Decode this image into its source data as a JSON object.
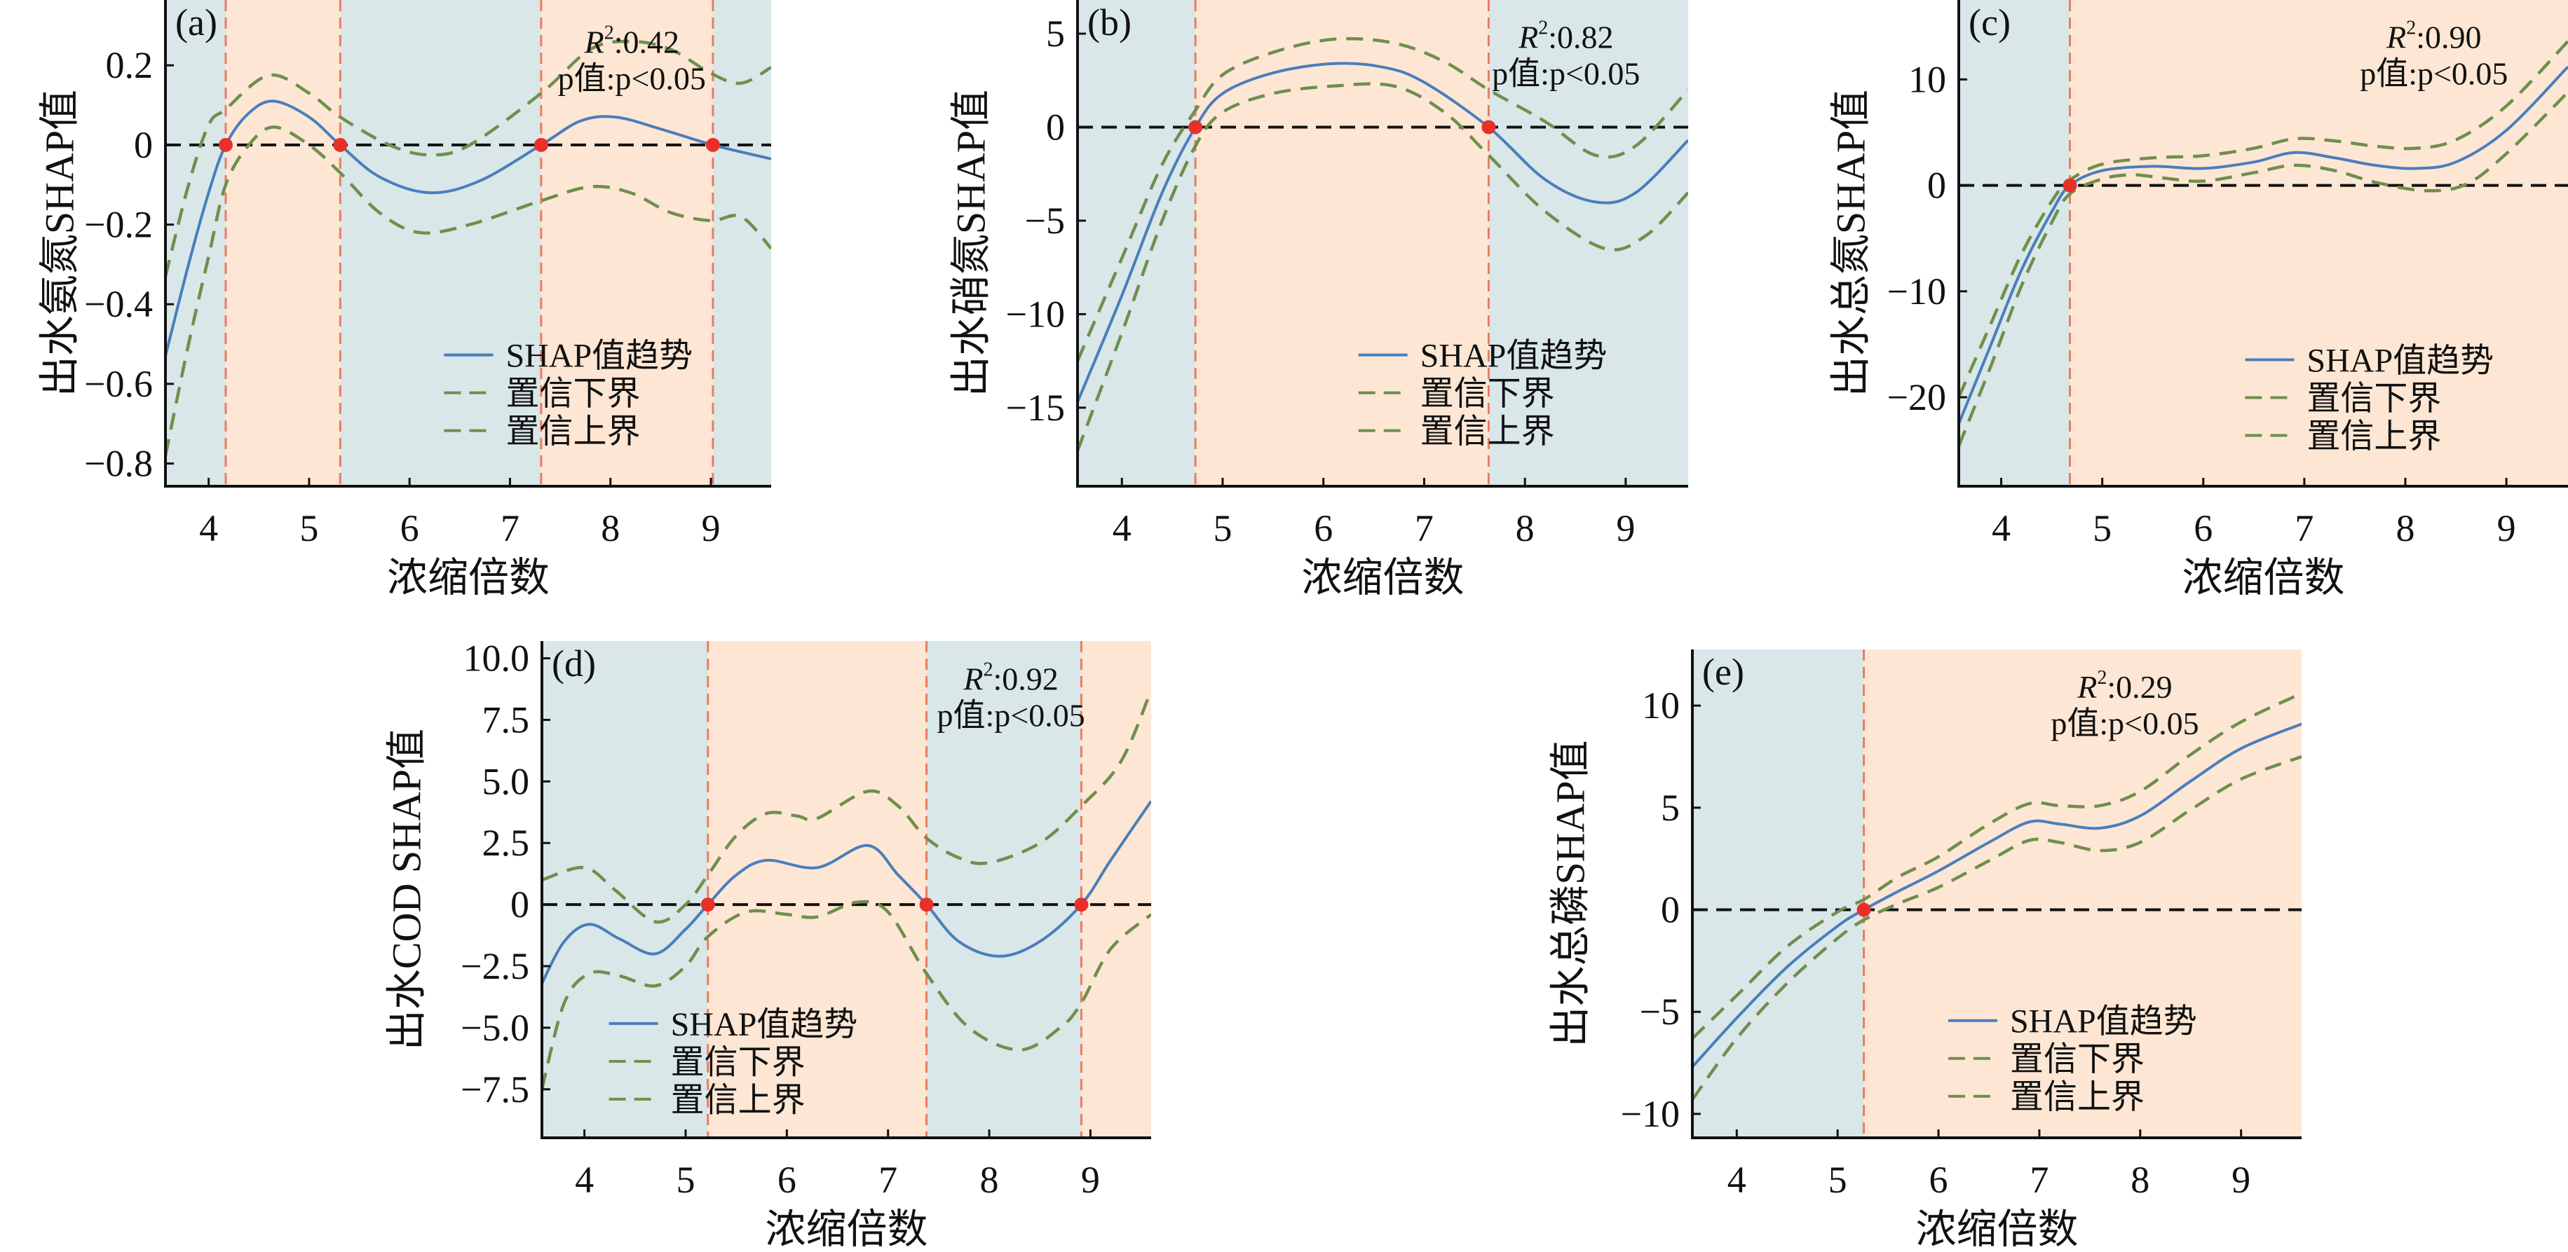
{
  "colors": {
    "region_low": "#d9e7e9",
    "region_high": "#fde7d4",
    "trend": "#4a7ebc",
    "confidence": "#6f8f4c",
    "threshold_line": "#ee7a5e",
    "threshold_dot": "#e8302a",
    "zero_line": "#111111"
  },
  "chart_data": [
    {
      "type": "line",
      "panel_label": "(a)",
      "xlabel": "浓缩倍数",
      "ylabel": "出水氨氮SHAP值",
      "r_symbol": "R",
      "r_sup": "2",
      "r2_value": ":0.42",
      "p_label": "p值:p<0.05",
      "legend": [
        "SHAP值趋势",
        "置信下界",
        "置信上界"
      ],
      "legend_placement": "lower-right",
      "xlim": [
        3.57,
        9.6
      ],
      "ylim": [
        -0.857,
        0.364
      ],
      "xticks": [
        4,
        5,
        6,
        7,
        8,
        9
      ],
      "xtick_labels": [
        "4",
        "5",
        "6",
        "7",
        "8",
        "9"
      ],
      "yticks": [
        0.2,
        0,
        -0.2,
        -0.4,
        -0.6,
        -0.8
      ],
      "ytick_labels": [
        "0.2",
        "0",
        "−0.2",
        "−0.4",
        "−0.6",
        "−0.8"
      ],
      "thresholds": [
        4.17,
        5.31,
        7.31,
        9.02
      ],
      "series": [
        {
          "name": "SHAP值趋势",
          "style": "solid",
          "x": [
            3.57,
            3.8,
            4.0,
            4.17,
            4.4,
            4.65,
            5.0,
            5.31,
            5.7,
            6.2,
            6.7,
            7.31,
            7.7,
            8.05,
            8.5,
            9.02,
            9.6
          ],
          "y": [
            -0.53,
            -0.3,
            -0.12,
            0,
            0.08,
            0.11,
            0.07,
            0,
            -0.08,
            -0.12,
            -0.09,
            0,
            0.06,
            0.07,
            0.04,
            0,
            -0.035
          ]
        },
        {
          "name": "置信下界",
          "style": "dashed",
          "x": [
            3.57,
            3.8,
            4.0,
            4.17,
            4.4,
            4.65,
            5.0,
            5.31,
            5.7,
            6.1,
            6.6,
            7.31,
            7.8,
            8.2,
            8.6,
            9.0,
            9.3,
            9.6
          ],
          "y": [
            -0.78,
            -0.5,
            -0.28,
            -0.1,
            0.0,
            0.045,
            0.0,
            -0.07,
            -0.17,
            -0.22,
            -0.2,
            -0.14,
            -0.105,
            -0.12,
            -0.17,
            -0.19,
            -0.18,
            -0.26
          ]
        },
        {
          "name": "置信上界",
          "style": "dashed",
          "x": [
            3.57,
            3.8,
            4.0,
            4.17,
            4.6,
            5.0,
            5.31,
            5.8,
            6.2,
            6.6,
            7.31,
            7.8,
            8.2,
            8.6,
            9.0,
            9.3,
            9.6
          ],
          "y": [
            -0.33,
            -0.1,
            0.05,
            0.09,
            0.175,
            0.13,
            0.07,
            0.0,
            -0.025,
            0.0,
            0.13,
            0.24,
            0.26,
            0.24,
            0.18,
            0.155,
            0.195
          ]
        }
      ]
    },
    {
      "type": "line",
      "panel_label": "(b)",
      "xlabel": "浓缩倍数",
      "ylabel": "出水硝氮SHAP值",
      "r_symbol": "R",
      "r_sup": "2",
      "r2_value": ":0.82",
      "p_label": "p值:p<0.05",
      "legend": [
        "SHAP值趋势",
        "置信下界",
        "置信上界"
      ],
      "legend_placement": "lower-right",
      "xlim": [
        3.56,
        9.62
      ],
      "ylim": [
        -19.2,
        6.8
      ],
      "xticks": [
        4,
        5,
        6,
        7,
        8,
        9
      ],
      "xtick_labels": [
        "4",
        "5",
        "6",
        "7",
        "8",
        "9"
      ],
      "yticks": [
        5,
        0,
        -5,
        -10,
        -15
      ],
      "ytick_labels": [
        "5",
        "0",
        "−5",
        "−10",
        "−15"
      ],
      "thresholds": [
        4.73,
        7.64
      ],
      "series": [
        {
          "name": "SHAP值趋势",
          "style": "solid",
          "x": [
            3.56,
            4.0,
            4.4,
            4.73,
            5.0,
            5.5,
            6.1,
            6.6,
            7.0,
            7.64,
            8.2,
            8.7,
            9.1,
            9.62
          ],
          "y": [
            -14.7,
            -9,
            -3.5,
            0,
            1.8,
            2.9,
            3.4,
            3.2,
            2.4,
            0,
            -2.8,
            -4,
            -3.5,
            -0.7
          ]
        },
        {
          "name": "置信下界",
          "style": "dashed",
          "x": [
            3.56,
            4.0,
            4.4,
            4.73,
            5.0,
            5.5,
            6.1,
            6.7,
            7.2,
            7.64,
            8.2,
            8.8,
            9.2,
            9.62
          ],
          "y": [
            -17.3,
            -11,
            -5,
            -1,
            0.8,
            1.8,
            2.2,
            2.2,
            0.8,
            -1.5,
            -4.5,
            -6.5,
            -5.8,
            -3.5
          ]
        },
        {
          "name": "置信上界",
          "style": "dashed",
          "x": [
            3.56,
            4.0,
            4.4,
            4.73,
            5.0,
            5.5,
            6.1,
            6.7,
            7.2,
            7.64,
            8.2,
            8.7,
            9.1,
            9.62
          ],
          "y": [
            -12.5,
            -7,
            -2,
            0.9,
            2.8,
            4.0,
            4.7,
            4.5,
            3.5,
            2.0,
            0.3,
            -1.5,
            -1.0,
            2.0
          ]
        }
      ]
    },
    {
      "type": "line",
      "panel_label": "(c)",
      "xlabel": "浓缩倍数",
      "ylabel": "出水总氮SHAP值",
      "r_symbol": "R",
      "r_sup": "2",
      "r2_value": ":0.90",
      "p_label": "p值:p<0.05",
      "legend": [
        "SHAP值趋势",
        "置信下界",
        "置信上界"
      ],
      "legend_placement": "lower-right",
      "xlim": [
        3.58,
        9.61
      ],
      "ylim": [
        -28.4,
        17.5
      ],
      "xticks": [
        4,
        5,
        6,
        7,
        8,
        9
      ],
      "xtick_labels": [
        "4",
        "5",
        "6",
        "7",
        "8",
        "9"
      ],
      "yticks": [
        10,
        0,
        -10,
        -20
      ],
      "ytick_labels": [
        "10",
        "0",
        "−10",
        "−20"
      ],
      "thresholds": [
        4.68
      ],
      "series": [
        {
          "name": "SHAP值趋势",
          "style": "solid",
          "x": [
            3.58,
            3.9,
            4.2,
            4.5,
            4.68,
            5.0,
            5.5,
            6.0,
            6.5,
            6.9,
            7.3,
            7.7,
            8.1,
            8.5,
            9.0,
            9.61
          ],
          "y": [
            -22.5,
            -15,
            -8,
            -2.5,
            0,
            1.4,
            1.8,
            1.6,
            2.2,
            3.1,
            2.6,
            1.9,
            1.6,
            2.2,
            5.2,
            11.2
          ]
        },
        {
          "name": "置信下界",
          "style": "dashed",
          "x": [
            3.58,
            3.9,
            4.2,
            4.5,
            4.68,
            5.0,
            5.3,
            5.6,
            6.0,
            6.5,
            6.9,
            7.3,
            7.7,
            8.2,
            8.6,
            9.0,
            9.61
          ],
          "y": [
            -24.6,
            -17,
            -9.5,
            -3.5,
            -0.8,
            0.6,
            1.0,
            0.7,
            0.4,
            1.2,
            1.9,
            1.4,
            0.3,
            -0.5,
            0.1,
            3.0,
            8.8
          ]
        },
        {
          "name": "置信上界",
          "style": "dashed",
          "x": [
            3.58,
            3.9,
            4.2,
            4.5,
            4.68,
            5.0,
            5.5,
            6.0,
            6.5,
            6.9,
            7.3,
            7.7,
            8.1,
            8.5,
            9.0,
            9.61
          ],
          "y": [
            -20,
            -13,
            -6.5,
            -1.5,
            0.5,
            2.0,
            2.6,
            2.8,
            3.5,
            4.4,
            4.2,
            3.7,
            3.5,
            4.3,
            7.5,
            13.6
          ]
        }
      ]
    },
    {
      "type": "line",
      "panel_label": "(d)",
      "xlabel": "浓缩倍数",
      "ylabel": "出水COD SHAP值",
      "r_symbol": "R",
      "r_sup": "2",
      "r2_value": ":0.92",
      "p_label": "p值:p<0.05",
      "legend": [
        "SHAP值趋势",
        "置信下界",
        "置信上界"
      ],
      "legend_placement": "lower-left",
      "xlim": [
        3.58,
        9.6
      ],
      "ylim": [
        -9.47,
        10.7
      ],
      "xticks": [
        4,
        5,
        6,
        7,
        8,
        9
      ],
      "xtick_labels": [
        "4",
        "5",
        "6",
        "7",
        "8",
        "9"
      ],
      "yticks": [
        10,
        7.5,
        5,
        2.5,
        0,
        -2.5,
        -5,
        -7.5
      ],
      "ytick_labels": [
        "10.0",
        "7.5",
        "5.0",
        "2.5",
        "0",
        "−2.5",
        "−5.0",
        "−7.5"
      ],
      "thresholds": [
        5.22,
        7.38,
        8.91
      ],
      "series": [
        {
          "name": "SHAP值趋势",
          "style": "solid",
          "x": [
            3.58,
            3.8,
            4.05,
            4.35,
            4.7,
            5.0,
            5.22,
            5.5,
            5.8,
            6.3,
            6.8,
            7.1,
            7.38,
            7.7,
            8.1,
            8.5,
            8.91,
            9.2,
            9.6
          ],
          "y": [
            -3.2,
            -1.5,
            -0.8,
            -1.4,
            -2.0,
            -1.0,
            0,
            1.2,
            1.8,
            1.5,
            2.4,
            1.2,
            0,
            -1.5,
            -2.1,
            -1.5,
            0,
            1.8,
            4.2
          ]
        },
        {
          "name": "置信下界",
          "style": "dashed",
          "x": [
            3.58,
            3.8,
            4.05,
            4.35,
            4.7,
            5.0,
            5.22,
            5.6,
            6.0,
            6.3,
            6.7,
            7.0,
            7.38,
            7.8,
            8.3,
            8.7,
            8.91,
            9.2,
            9.6
          ],
          "y": [
            -7.5,
            -4.0,
            -2.8,
            -2.9,
            -3.3,
            -2.5,
            -1.3,
            -0.3,
            -0.4,
            -0.5,
            0.1,
            -0.3,
            -2.8,
            -5.0,
            -5.9,
            -5.0,
            -4.0,
            -1.8,
            -0.4
          ]
        },
        {
          "name": "置信上界",
          "style": "dashed",
          "x": [
            3.58,
            4.0,
            4.3,
            4.7,
            5.0,
            5.22,
            5.5,
            5.8,
            6.1,
            6.3,
            6.8,
            7.1,
            7.38,
            7.7,
            8.0,
            8.5,
            8.91,
            9.3,
            9.6
          ],
          "y": [
            1.0,
            1.5,
            0.6,
            -0.7,
            0.0,
            1.2,
            2.8,
            3.7,
            3.6,
            3.5,
            4.6,
            4.0,
            2.7,
            1.9,
            1.7,
            2.5,
            4.0,
            5.8,
            8.7
          ]
        }
      ]
    },
    {
      "type": "line",
      "panel_label": "(e)",
      "xlabel": "浓缩倍数",
      "ylabel": "出水总磷SHAP值",
      "r_symbol": "R",
      "r_sup": "2",
      "r2_value": ":0.29",
      "p_label": "p值:p<0.05",
      "legend": [
        "SHAP值趋势",
        "置信下界",
        "置信上界"
      ],
      "legend_placement": "lower-center",
      "xlim": [
        3.56,
        9.6
      ],
      "ylim": [
        -11.17,
        12.75
      ],
      "xticks": [
        4,
        5,
        6,
        7,
        8,
        9
      ],
      "xtick_labels": [
        "4",
        "5",
        "6",
        "7",
        "8",
        "9"
      ],
      "yticks": [
        10,
        5,
        0,
        -5,
        -10
      ],
      "ytick_labels": [
        "10",
        "5",
        "0",
        "−5",
        "−10"
      ],
      "thresholds": [
        5.26
      ],
      "series": [
        {
          "name": "SHAP值趋势",
          "style": "solid",
          "x": [
            3.56,
            4.0,
            4.5,
            5.0,
            5.26,
            5.6,
            6.0,
            6.5,
            6.9,
            7.2,
            7.6,
            8.0,
            8.5,
            9.0,
            9.6
          ],
          "y": [
            -7.7,
            -5.3,
            -2.8,
            -0.8,
            0,
            0.9,
            1.9,
            3.3,
            4.3,
            4.2,
            4.0,
            4.6,
            6.3,
            7.9,
            9.1
          ]
        },
        {
          "name": "置信下界",
          "style": "dashed",
          "x": [
            3.56,
            4.0,
            4.5,
            5.0,
            5.26,
            5.6,
            6.0,
            6.5,
            6.9,
            7.2,
            7.6,
            8.0,
            8.5,
            9.0,
            9.6
          ],
          "y": [
            -9.3,
            -6.3,
            -3.6,
            -1.4,
            -0.5,
            0.3,
            1.1,
            2.4,
            3.4,
            3.3,
            2.9,
            3.3,
            4.9,
            6.4,
            7.5
          ]
        },
        {
          "name": "置信上界",
          "style": "dashed",
          "x": [
            3.56,
            4.0,
            4.5,
            5.0,
            5.26,
            5.6,
            6.0,
            6.5,
            6.9,
            7.2,
            7.6,
            8.0,
            8.5,
            9.0,
            9.6
          ],
          "y": [
            -6.3,
            -4.2,
            -1.8,
            -0.1,
            0.5,
            1.6,
            2.6,
            4.2,
            5.2,
            5.1,
            5.1,
            5.8,
            7.6,
            9.2,
            10.6
          ]
        }
      ]
    }
  ]
}
